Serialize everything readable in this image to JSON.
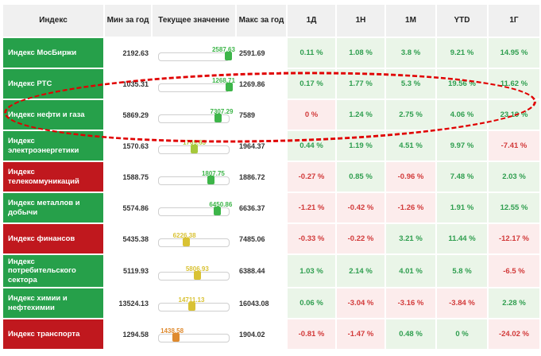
{
  "table": {
    "columns": [
      "Индекс",
      "Мин за год",
      "Текущее значение",
      "Макс за год",
      "1Д",
      "1Н",
      "1М",
      "YTD",
      "1Г"
    ],
    "rows": [
      {
        "label": "Индекс МосБиржи",
        "label_color": "green",
        "min": "2192.63",
        "current": "2587.63",
        "max": "2591.69",
        "marker": "green",
        "changes": [
          {
            "value": "0.11 %",
            "sign": "pos"
          },
          {
            "value": "1.08 %",
            "sign": "pos"
          },
          {
            "value": "3.8 %",
            "sign": "pos"
          },
          {
            "value": "9.21 %",
            "sign": "pos"
          },
          {
            "value": "14.95 %",
            "sign": "pos"
          }
        ]
      },
      {
        "label": "Индекс РТС",
        "label_color": "green",
        "min": "1035.31",
        "current": "1268.71",
        "max": "1269.86",
        "marker": "green",
        "changes": [
          {
            "value": "0.17 %",
            "sign": "pos"
          },
          {
            "value": "1.77 %",
            "sign": "pos"
          },
          {
            "value": "5.3 %",
            "sign": "pos"
          },
          {
            "value": "19.56 %",
            "sign": "pos"
          },
          {
            "value": "11.62 %",
            "sign": "pos"
          }
        ]
      },
      {
        "label": "Индекс нефти и газа",
        "label_color": "green",
        "min": "5869.29",
        "current": "7307.29",
        "max": "7589",
        "marker": "green",
        "changes": [
          {
            "value": "0 %",
            "sign": "neg"
          },
          {
            "value": "1.24 %",
            "sign": "pos"
          },
          {
            "value": "2.75 %",
            "sign": "pos"
          },
          {
            "value": "4.06 %",
            "sign": "pos"
          },
          {
            "value": "23.19 %",
            "sign": "pos"
          }
        ]
      },
      {
        "label": "Индекс электроэнергетики",
        "label_color": "green",
        "min": "1570.63",
        "current": "1769.63",
        "max": "1964.37",
        "marker": "lime",
        "changes": [
          {
            "value": "0.44 %",
            "sign": "pos"
          },
          {
            "value": "1.19 %",
            "sign": "pos"
          },
          {
            "value": "4.51 %",
            "sign": "pos"
          },
          {
            "value": "9.97 %",
            "sign": "pos"
          },
          {
            "value": "-7.41 %",
            "sign": "neg"
          }
        ]
      },
      {
        "label": "Индекс телекоммуникаций",
        "label_color": "red",
        "min": "1588.75",
        "current": "1807.75",
        "max": "1886.72",
        "marker": "green",
        "changes": [
          {
            "value": "-0.27 %",
            "sign": "neg"
          },
          {
            "value": "0.85 %",
            "sign": "pos"
          },
          {
            "value": "-0.96 %",
            "sign": "neg"
          },
          {
            "value": "7.48 %",
            "sign": "pos"
          },
          {
            "value": "2.03 %",
            "sign": "pos"
          }
        ]
      },
      {
        "label": "Индекс металлов и добычи",
        "label_color": "green",
        "min": "5574.86",
        "current": "6450.86",
        "max": "6636.37",
        "marker": "green",
        "changes": [
          {
            "value": "-1.21 %",
            "sign": "neg"
          },
          {
            "value": "-0.42 %",
            "sign": "neg"
          },
          {
            "value": "-1.26 %",
            "sign": "neg"
          },
          {
            "value": "1.91 %",
            "sign": "pos"
          },
          {
            "value": "12.55 %",
            "sign": "pos"
          }
        ]
      },
      {
        "label": "Индекс финансов",
        "label_color": "red",
        "min": "5435.38",
        "current": "6226.38",
        "max": "7485.06",
        "marker": "yellow",
        "changes": [
          {
            "value": "-0.33 %",
            "sign": "neg"
          },
          {
            "value": "-0.22 %",
            "sign": "neg"
          },
          {
            "value": "3.21 %",
            "sign": "pos"
          },
          {
            "value": "11.44 %",
            "sign": "pos"
          },
          {
            "value": "-12.17 %",
            "sign": "neg"
          }
        ]
      },
      {
        "label": "Индекс потребительского сектора",
        "label_color": "green",
        "min": "5119.93",
        "current": "5806.93",
        "max": "6388.44",
        "marker": "yellow",
        "changes": [
          {
            "value": "1.03 %",
            "sign": "pos"
          },
          {
            "value": "2.14 %",
            "sign": "pos"
          },
          {
            "value": "4.01 %",
            "sign": "pos"
          },
          {
            "value": "5.8 %",
            "sign": "pos"
          },
          {
            "value": "-6.5 %",
            "sign": "neg"
          }
        ]
      },
      {
        "label": "Индекс химии и нефтехимии",
        "label_color": "green",
        "min": "13524.13",
        "current": "14711.13",
        "max": "16043.08",
        "marker": "yellow",
        "changes": [
          {
            "value": "0.06 %",
            "sign": "pos"
          },
          {
            "value": "-3.04 %",
            "sign": "neg"
          },
          {
            "value": "-3.16 %",
            "sign": "neg"
          },
          {
            "value": "-3.84 %",
            "sign": "neg"
          },
          {
            "value": "2.28 %",
            "sign": "pos"
          }
        ]
      },
      {
        "label": "Индекс транспорта",
        "label_color": "red",
        "min": "1294.58",
        "current": "1438.58",
        "max": "1904.02",
        "marker": "orange",
        "changes": [
          {
            "value": "-0.81 %",
            "sign": "neg"
          },
          {
            "value": "-1.47 %",
            "sign": "neg"
          },
          {
            "value": "0.48 %",
            "sign": "pos"
          },
          {
            "value": "0 %",
            "sign": "pos"
          },
          {
            "value": "-24.02 %",
            "sign": "neg"
          }
        ]
      }
    ]
  },
  "annotation": {
    "shape": "dashed-ellipse",
    "color": "#e00000",
    "target_row": "Индекс нефти и газа"
  },
  "colors": {
    "header_bg": "#f0f0f0",
    "label_green": "#26a04a",
    "label_red": "#c0181e",
    "pos_bg": "#eaf5e8",
    "pos_text": "#2f9e4f",
    "neg_bg": "#fcecec",
    "neg_text": "#d23a3a",
    "marker": {
      "green": "#3db549",
      "lime": "#a6c83b",
      "yellow": "#d9c234",
      "orange": "#df8a2e"
    }
  }
}
